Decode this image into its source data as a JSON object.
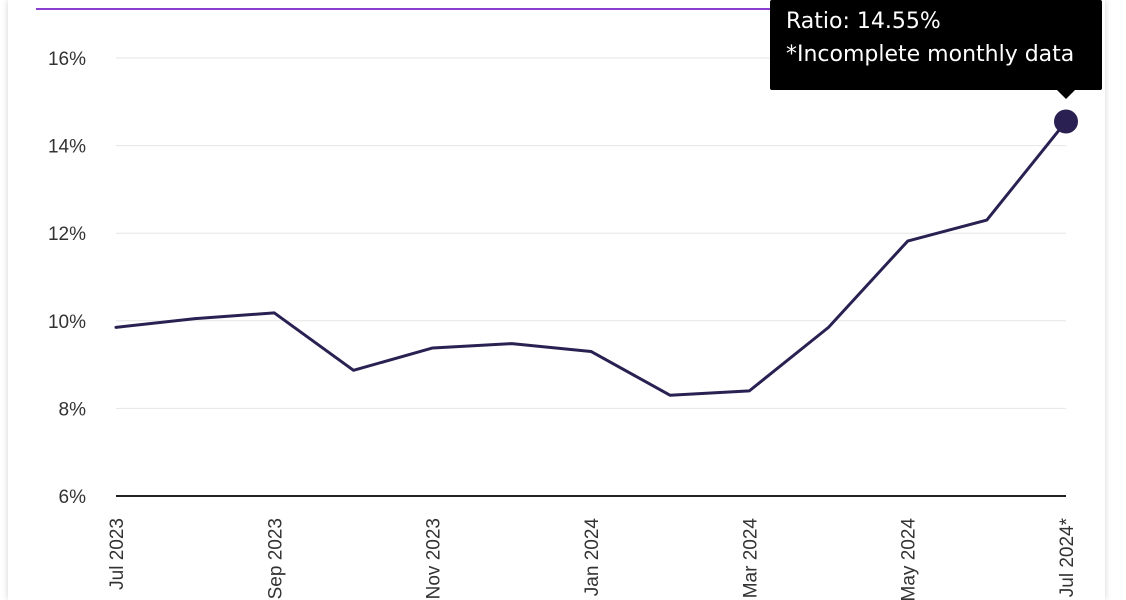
{
  "colors": {
    "line": "#2a2152",
    "accent": "#8a3fd1",
    "grid": "#e6e6e6",
    "axis": "#222222",
    "tooltip_bg": "#000000",
    "tooltip_text": "#ffffff"
  },
  "tooltip": {
    "ratio_text": "Ratio: 14.55%",
    "note_text": "*Incomplete monthly data"
  },
  "chart_data": {
    "type": "line",
    "title": "",
    "xlabel": "",
    "ylabel": "",
    "x": [
      "Jul 2023",
      "Aug 2023",
      "Sep 2023",
      "Oct 2023",
      "Nov 2023",
      "Dec 2023",
      "Jan 2024",
      "Feb 2024",
      "Mar 2024",
      "Apr 2024",
      "May 2024",
      "Jun 2024",
      "Jul 2024*"
    ],
    "x_tick_labels": [
      "Jul 2023",
      "Sep 2023",
      "Nov 2023",
      "Jan 2024",
      "Mar 2024",
      "May 2024",
      "Jul 2024*"
    ],
    "y_tick_labels": [
      "6%",
      "8%",
      "10%",
      "12%",
      "14%",
      "16%"
    ],
    "y_ticks": [
      6,
      8,
      10,
      12,
      14,
      16
    ],
    "ylim": [
      6,
      16.5
    ],
    "grid": true,
    "legend": "none",
    "series": [
      {
        "values": [
          9.85,
          10.05,
          10.18,
          8.87,
          9.38,
          9.48,
          9.3,
          8.3,
          8.4,
          9.85,
          11.82,
          12.3,
          14.55
        ]
      }
    ],
    "highlighted_point": {
      "x": "Jul 2024*",
      "y": 14.55
    }
  }
}
